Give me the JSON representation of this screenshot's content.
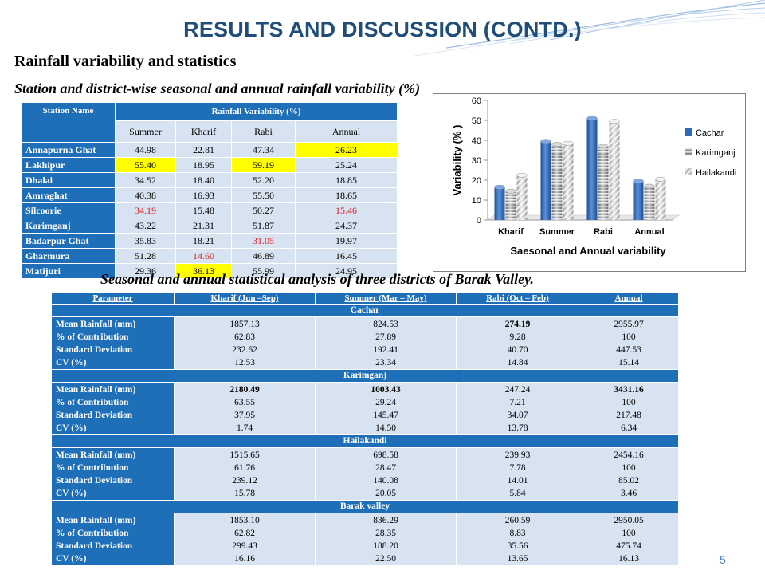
{
  "page": {
    "title": "RESULTS AND DISCUSSION (CONTD.)",
    "subtitle": "Rainfall variability and statistics",
    "caption1": "Station and district-wise seasonal and annual rainfall variability (%)",
    "caption2": "Seasonal and annual statistical analysis of three districts of Barak Valley.",
    "page_number": "5"
  },
  "colors": {
    "header_blue": "#1e6fb8",
    "cell_light": "#d7e3f1",
    "highlight_yellow": "#ffff00",
    "highlight_red_text": "#e02020",
    "title_color": "#1f4e79"
  },
  "variability_table": {
    "header_station": "Station Name",
    "header_group": "Rainfall Variability (%)",
    "columns": [
      "Summer",
      "Kharif",
      "Rabi",
      "Annual"
    ],
    "rows": [
      {
        "name": "Annapurna Ghat",
        "values": [
          "44.98",
          "22.81",
          "47.34",
          "26.23"
        ]
      },
      {
        "name": "Lakhipur",
        "values": [
          "55.40",
          "18.95",
          "59.19",
          "25.24"
        ]
      },
      {
        "name": "Dhalai",
        "values": [
          "34.52",
          "18.40",
          "52.20",
          "18.85"
        ]
      },
      {
        "name": "Amraghat",
        "values": [
          "40.38",
          "16.93",
          "55.50",
          "18.65"
        ]
      },
      {
        "name": "Silcoorie",
        "values": [
          "34.19",
          "15.48",
          "50.27",
          "15.46"
        ]
      },
      {
        "name": "Karimganj",
        "values": [
          "43.22",
          "21.31",
          "51.87",
          "24.37"
        ]
      },
      {
        "name": "Badarpur Ghat",
        "values": [
          "35.83",
          "18.21",
          "31.05",
          "19.97"
        ]
      },
      {
        "name": "Gharmura",
        "values": [
          "51.28",
          "14.60",
          "46.89",
          "16.45"
        ]
      },
      {
        "name": "Matijuri",
        "values": [
          "29.36",
          "36.13",
          "55.99",
          "24.95"
        ]
      }
    ],
    "yellow_cells": [
      [
        0,
        3
      ],
      [
        1,
        0
      ],
      [
        1,
        2
      ],
      [
        8,
        1
      ]
    ],
    "red_cells": [
      [
        4,
        0
      ],
      [
        4,
        3
      ],
      [
        6,
        2
      ],
      [
        7,
        1
      ]
    ]
  },
  "chart_data": {
    "type": "bar",
    "style": "3d-cylinder",
    "categories": [
      "Kharif",
      "Summer",
      "Rabi",
      "Annual"
    ],
    "series": [
      {
        "name": "Cachar",
        "values": [
          16.5,
          39.5,
          51,
          19.5
        ],
        "color": "#2f68b8"
      },
      {
        "name": "Karimganj",
        "values": [
          14.5,
          38,
          37,
          17
        ],
        "color": "#8c8c8c"
      },
      {
        "name": "Hailakandi",
        "values": [
          22.5,
          38.5,
          49.5,
          20.5
        ],
        "color": "#bfbfbf"
      }
    ],
    "title": "Saesonal and Annual variability",
    "ylabel": "Variability (% )",
    "ylim": [
      0,
      60
    ],
    "yticks": [
      "0",
      "10",
      "20",
      "30",
      "40",
      "50",
      "60"
    ],
    "legend_position": "right",
    "grid": false
  },
  "stats_table": {
    "headers": [
      "Parameter",
      "Kharif (Jun –Sep)",
      "Summer (Mar – May)",
      "Rabi (Oct – Feb)",
      "Annual"
    ],
    "param_labels": [
      "Mean Rainfall (mm)",
      "% of Contribution",
      "Standard Deviation",
      "CV (%)"
    ],
    "groups": [
      {
        "name": "Cachar",
        "cols": [
          {
            "values": [
              "1857.13",
              "62.83",
              "232.62",
              "12.53"
            ],
            "bold_first": false
          },
          {
            "values": [
              "824.53",
              "27.89",
              "192.41",
              "23.34"
            ],
            "bold_first": false
          },
          {
            "values": [
              "274.19",
              "9.28",
              "40.70",
              "14.84"
            ],
            "bold_first": true
          },
          {
            "values": [
              "2955.97",
              "100",
              "447.53",
              "15.14"
            ],
            "bold_first": false
          }
        ]
      },
      {
        "name": "Karimganj",
        "cols": [
          {
            "values": [
              "2180.49",
              "63.55",
              "37.95",
              "1.74"
            ],
            "bold_first": true
          },
          {
            "values": [
              "1003.43",
              "29.24",
              "145.47",
              "14.50"
            ],
            "bold_first": true
          },
          {
            "values": [
              "247.24",
              "7.21",
              "34.07",
              "13.78"
            ],
            "bold_first": false
          },
          {
            "values": [
              "3431.16",
              "100",
              "217.48",
              "6.34"
            ],
            "bold_first": true
          }
        ]
      },
      {
        "name": "Hailakandi",
        "cols": [
          {
            "values": [
              "1515.65",
              "61.76",
              "239.12",
              "15.78"
            ],
            "bold_first": false
          },
          {
            "values": [
              "698.58",
              "28.47",
              "140.08",
              "20.05"
            ],
            "bold_first": false
          },
          {
            "values": [
              "239.93",
              "7.78",
              "14.01",
              "5.84"
            ],
            "bold_first": false
          },
          {
            "values": [
              "2454.16",
              "100",
              "85.02",
              "3.46"
            ],
            "bold_first": false
          }
        ]
      },
      {
        "name": "Barak valley",
        "cols": [
          {
            "values": [
              "1853.10",
              "62.82",
              "299.43",
              "16.16"
            ],
            "bold_first": false
          },
          {
            "values": [
              "836.29",
              "28.35",
              "188.20",
              "22.50"
            ],
            "bold_first": false
          },
          {
            "values": [
              "260.59",
              "8.83",
              "35.56",
              "13.65"
            ],
            "bold_first": false
          },
          {
            "values": [
              "2950.05",
              "100",
              "475.74",
              "16.13"
            ],
            "bold_first": false
          }
        ]
      }
    ]
  }
}
